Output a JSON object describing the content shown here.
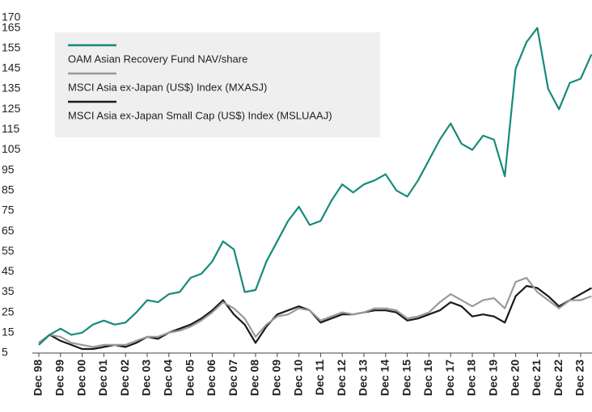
{
  "chart_data": {
    "type": "line",
    "categories": [
      "Dec 98",
      null,
      "Dec 99",
      null,
      "Dec 00",
      null,
      "Dec 01",
      null,
      "Dec 02",
      null,
      "Dec 03",
      null,
      "Dec 04",
      null,
      "Dec 05",
      null,
      "Dec 06",
      null,
      "Dec 07",
      null,
      "Dec 08",
      null,
      "Dec 09",
      null,
      "Dec 10",
      null,
      "Dec 11",
      null,
      "Dec 12",
      null,
      "Dec 13",
      null,
      "Dec 14",
      null,
      "Dec 15",
      null,
      "Dec 16",
      null,
      "Dec 17",
      null,
      "Dec 18",
      null,
      "Dec 19",
      null,
      "Dec 20",
      null,
      "Dec 21",
      null,
      "Dec 22",
      null,
      "Dec 23",
      null
    ],
    "series": [
      {
        "name": "OAM Asian Recovery Fund NAV/share",
        "color": "#178a79",
        "values": [
          9,
          14,
          17,
          14,
          15,
          19,
          21,
          19,
          20,
          25,
          31,
          30,
          34,
          35,
          42,
          44,
          50,
          60,
          56,
          35,
          36,
          50,
          60,
          70,
          77,
          68,
          70,
          80,
          88,
          84,
          88,
          90,
          93,
          85,
          82,
          90,
          100,
          110,
          118,
          108,
          105,
          112,
          110,
          92,
          145,
          158,
          165,
          135,
          125,
          138,
          140,
          152
        ]
      },
      {
        "name": "MSCI Asia ex-Japan (US$) Index (MXASJ)",
        "color": "#999999",
        "values": [
          10,
          14,
          13,
          10,
          9,
          8,
          9,
          9,
          9,
          11,
          13,
          13,
          15,
          16,
          18,
          21,
          25,
          30,
          27,
          22,
          13,
          19,
          23,
          24,
          27,
          26,
          21,
          23,
          25,
          24,
          25,
          27,
          27,
          26,
          22,
          23,
          25,
          30,
          34,
          31,
          28,
          31,
          32,
          27,
          40,
          42,
          35,
          31,
          27,
          31,
          31,
          33
        ]
      },
      {
        "name": "MSCI Asia ex-Japan Small Cap (US$) Index (MSLUAAJ)",
        "color": "#1a1a1a",
        "values": [
          10,
          14,
          11,
          9,
          7,
          7,
          8,
          9,
          8,
          10,
          13,
          12,
          15,
          17,
          19,
          22,
          26,
          31,
          24,
          19,
          10,
          18,
          24,
          26,
          28,
          26,
          20,
          22,
          24,
          24,
          25,
          26,
          26,
          25,
          21,
          22,
          24,
          26,
          30,
          28,
          23,
          24,
          23,
          20,
          33,
          38,
          37,
          33,
          28,
          31,
          34,
          37
        ]
      }
    ],
    "ylim": [
      5,
      170
    ],
    "yticks": [
      5,
      15,
      25,
      35,
      45,
      55,
      65,
      75,
      85,
      95,
      105,
      115,
      125,
      135,
      145,
      155,
      165,
      170
    ],
    "grid": false,
    "legend": "upper left"
  }
}
